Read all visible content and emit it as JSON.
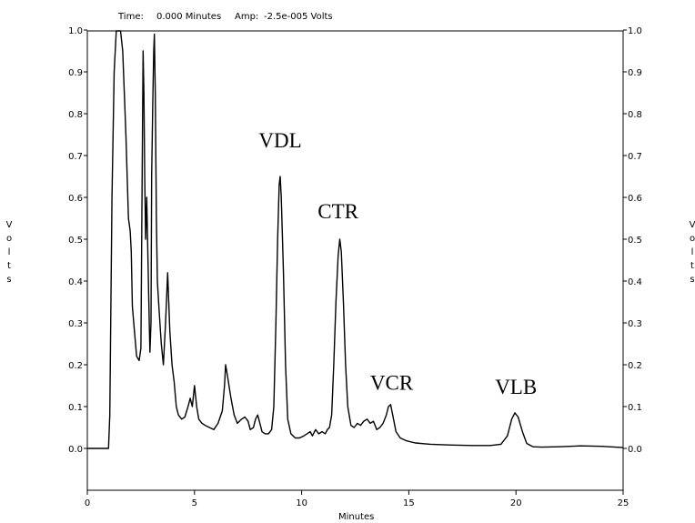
{
  "readout": {
    "time_label": "Time:",
    "time_value": "0.000 Minutes",
    "amp_label": "Amp:",
    "amp_value": "-2.5e-005 Volts"
  },
  "chart_data": {
    "type": "line",
    "title": "",
    "xlabel": "Minutes",
    "ylabel": "Volts",
    "ylabel_right": "Volts",
    "xlim": [
      0,
      25
    ],
    "ylim": [
      -0.1,
      1.0
    ],
    "x_ticks": [
      0,
      5,
      10,
      15,
      20,
      25
    ],
    "x_tick_labels": [
      "0",
      "5",
      "10",
      "15",
      "20",
      "25"
    ],
    "y_ticks": [
      0.0,
      0.1,
      0.2,
      0.3,
      0.4,
      0.5,
      0.6,
      0.7,
      0.8,
      0.9,
      1.0
    ],
    "y_tick_labels": [
      "0.0",
      "0.1",
      "0.2",
      "0.3",
      "0.4",
      "0.5",
      "0.6",
      "0.7",
      "0.8",
      "0.9",
      "1.0"
    ],
    "grid": false,
    "annotations": [
      {
        "text": "VDL",
        "x": 9.0,
        "y": 0.72
      },
      {
        "text": "CTR",
        "x": 11.7,
        "y": 0.55
      },
      {
        "text": "VCR",
        "x": 14.2,
        "y": 0.14
      },
      {
        "text": "VLB",
        "x": 20.0,
        "y": 0.13
      }
    ],
    "series": [
      {
        "points": [
          [
            0.0,
            0.0
          ],
          [
            0.99,
            0.0
          ],
          [
            1.05,
            0.08
          ],
          [
            1.15,
            0.6
          ],
          [
            1.25,
            0.9
          ],
          [
            1.35,
            1.0
          ],
          [
            1.55,
            1.0
          ],
          [
            1.65,
            0.95
          ],
          [
            1.8,
            0.75
          ],
          [
            1.92,
            0.55
          ],
          [
            2.0,
            0.52
          ],
          [
            2.05,
            0.47
          ],
          [
            2.1,
            0.34
          ],
          [
            2.2,
            0.28
          ],
          [
            2.3,
            0.22
          ],
          [
            2.42,
            0.21
          ],
          [
            2.5,
            0.24
          ],
          [
            2.55,
            0.6
          ],
          [
            2.6,
            0.95
          ],
          [
            2.64,
            0.85
          ],
          [
            2.68,
            0.65
          ],
          [
            2.72,
            0.5
          ],
          [
            2.77,
            0.6
          ],
          [
            2.82,
            0.48
          ],
          [
            2.87,
            0.35
          ],
          [
            2.92,
            0.23
          ],
          [
            2.97,
            0.3
          ],
          [
            3.0,
            0.65
          ],
          [
            3.05,
            0.82
          ],
          [
            3.1,
            0.95
          ],
          [
            3.13,
            0.99
          ],
          [
            3.17,
            0.85
          ],
          [
            3.22,
            0.55
          ],
          [
            3.27,
            0.4
          ],
          [
            3.35,
            0.33
          ],
          [
            3.45,
            0.25
          ],
          [
            3.55,
            0.2
          ],
          [
            3.65,
            0.3
          ],
          [
            3.75,
            0.42
          ],
          [
            3.8,
            0.35
          ],
          [
            3.85,
            0.28
          ],
          [
            3.95,
            0.2
          ],
          [
            4.05,
            0.16
          ],
          [
            4.15,
            0.1
          ],
          [
            4.25,
            0.08
          ],
          [
            4.4,
            0.07
          ],
          [
            4.55,
            0.075
          ],
          [
            4.7,
            0.1
          ],
          [
            4.8,
            0.12
          ],
          [
            4.9,
            0.1
          ],
          [
            5.0,
            0.15
          ],
          [
            5.1,
            0.1
          ],
          [
            5.2,
            0.07
          ],
          [
            5.35,
            0.06
          ],
          [
            5.5,
            0.055
          ],
          [
            5.7,
            0.05
          ],
          [
            5.9,
            0.045
          ],
          [
            6.1,
            0.06
          ],
          [
            6.3,
            0.09
          ],
          [
            6.4,
            0.15
          ],
          [
            6.45,
            0.2
          ],
          [
            6.55,
            0.17
          ],
          [
            6.7,
            0.12
          ],
          [
            6.85,
            0.08
          ],
          [
            7.0,
            0.06
          ],
          [
            7.2,
            0.07
          ],
          [
            7.35,
            0.075
          ],
          [
            7.5,
            0.065
          ],
          [
            7.6,
            0.045
          ],
          [
            7.75,
            0.05
          ],
          [
            7.85,
            0.07
          ],
          [
            7.95,
            0.08
          ],
          [
            8.05,
            0.06
          ],
          [
            8.15,
            0.04
          ],
          [
            8.3,
            0.035
          ],
          [
            8.45,
            0.035
          ],
          [
            8.6,
            0.045
          ],
          [
            8.7,
            0.1
          ],
          [
            8.8,
            0.3
          ],
          [
            8.88,
            0.5
          ],
          [
            8.95,
            0.63
          ],
          [
            9.0,
            0.65
          ],
          [
            9.05,
            0.6
          ],
          [
            9.15,
            0.42
          ],
          [
            9.25,
            0.2
          ],
          [
            9.35,
            0.07
          ],
          [
            9.5,
            0.035
          ],
          [
            9.7,
            0.025
          ],
          [
            9.9,
            0.025
          ],
          [
            10.1,
            0.03
          ],
          [
            10.25,
            0.035
          ],
          [
            10.4,
            0.04
          ],
          [
            10.5,
            0.03
          ],
          [
            10.65,
            0.045
          ],
          [
            10.8,
            0.035
          ],
          [
            10.95,
            0.04
          ],
          [
            11.1,
            0.035
          ],
          [
            11.2,
            0.045
          ],
          [
            11.3,
            0.05
          ],
          [
            11.4,
            0.08
          ],
          [
            11.5,
            0.2
          ],
          [
            11.6,
            0.35
          ],
          [
            11.7,
            0.46
          ],
          [
            11.78,
            0.5
          ],
          [
            11.85,
            0.47
          ],
          [
            11.95,
            0.35
          ],
          [
            12.05,
            0.2
          ],
          [
            12.15,
            0.1
          ],
          [
            12.3,
            0.055
          ],
          [
            12.45,
            0.05
          ],
          [
            12.6,
            0.06
          ],
          [
            12.75,
            0.055
          ],
          [
            12.9,
            0.065
          ],
          [
            13.05,
            0.07
          ],
          [
            13.2,
            0.06
          ],
          [
            13.35,
            0.065
          ],
          [
            13.5,
            0.045
          ],
          [
            13.65,
            0.05
          ],
          [
            13.8,
            0.06
          ],
          [
            13.95,
            0.08
          ],
          [
            14.05,
            0.1
          ],
          [
            14.15,
            0.105
          ],
          [
            14.25,
            0.08
          ],
          [
            14.4,
            0.04
          ],
          [
            14.6,
            0.025
          ],
          [
            14.9,
            0.018
          ],
          [
            15.3,
            0.013
          ],
          [
            16.0,
            0.01
          ],
          [
            17.0,
            0.008
          ],
          [
            18.0,
            0.007
          ],
          [
            18.8,
            0.007
          ],
          [
            19.3,
            0.01
          ],
          [
            19.6,
            0.03
          ],
          [
            19.8,
            0.07
          ],
          [
            19.95,
            0.085
          ],
          [
            20.1,
            0.075
          ],
          [
            20.3,
            0.04
          ],
          [
            20.5,
            0.012
          ],
          [
            20.8,
            0.004
          ],
          [
            21.2,
            0.003
          ],
          [
            22.0,
            0.004
          ],
          [
            23.0,
            0.006
          ],
          [
            24.0,
            0.005
          ],
          [
            25.0,
            0.002
          ]
        ]
      }
    ]
  }
}
